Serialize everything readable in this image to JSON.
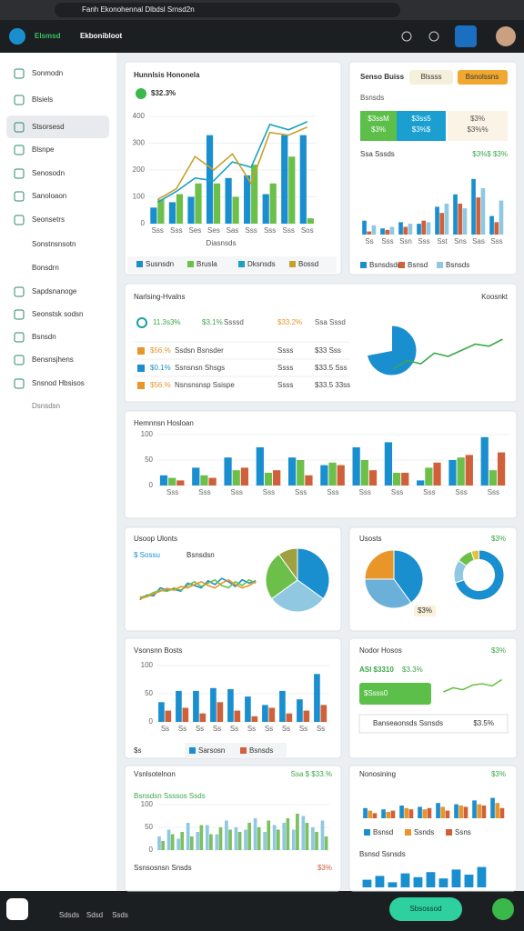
{
  "browser": {
    "tab_title": "Fanh Ekonohennal Dlbdsl Srnsd2n"
  },
  "header": {
    "brand": "Elsmsd",
    "app_name": "Ekbonibloot"
  },
  "sidebar": {
    "items": [
      "Sonmodn",
      "Blsiels",
      "Stsorsesd",
      "Blsnpe",
      "Senosodn",
      "Sanoloaon",
      "Seonsetrs",
      "Sonstnsnsotn",
      "Bonsdrn",
      "Sapdsnanoge",
      "Seonstsk sodsn",
      "Bsnsdn",
      "Bensnsjhens",
      "Snsnod Hbsisos"
    ],
    "footer": "Dsnsdsn"
  },
  "panels": [
    {
      "title": "Hunnlsis Hononela",
      "stat": "$32.3%",
      "x_label": "Diasnsds",
      "charts": [
        {
          "type": "bar-line",
          "ylim": [
            0,
            400
          ],
          "yticks": [
            0,
            100,
            200,
            300,
            400
          ],
          "categories": [
            "Sss",
            "Sss",
            "Ses",
            "Ses",
            "Sas",
            "Sss",
            "Sss",
            "Sss",
            "Sos"
          ],
          "series": [
            {
              "name": "Susnsdn",
              "color": "#1a8fd0",
              "mark": "bar",
              "values": [
                60,
                80,
                100,
                330,
                170,
                180,
                110,
                330,
                330
              ]
            },
            {
              "name": "Brusla",
              "color": "#6cc04a",
              "mark": "bar",
              "values": [
                90,
                110,
                150,
                150,
                100,
                220,
                150,
                250,
                20
              ]
            },
            {
              "name": "Dksnsds",
              "color": "#1aa0c0",
              "mark": "line",
              "values": [
                80,
                120,
                170,
                160,
                230,
                210,
                370,
                350,
                380
              ]
            },
            {
              "name": "Bossd",
              "color": "#c8a02a",
              "mark": "line",
              "values": [
                90,
                130,
                250,
                200,
                260,
                150,
                340,
                330,
                360
              ]
            }
          ]
        }
      ]
    },
    {
      "title": "Senso Buiss",
      "buttons": [
        "Blssss",
        "Bsnolssns"
      ],
      "tiles": [
        [
          "$3ssM",
          "$3%"
        ],
        [
          "$3ss5",
          "$3%$"
        ],
        [
          "$3%",
          "$3%%"
        ]
      ],
      "subtitle": "Bsnsds",
      "caption": "Ssa Sssds",
      "note": "$3%$ $3%",
      "charts": [
        {
          "type": "bar",
          "ylim": [
            0,
            200
          ],
          "categories": [
            "Ss",
            "Sss",
            "Ssn",
            "Sss",
            "Sst",
            "Sns",
            "Sas",
            "Sss"
          ],
          "series": [
            {
              "name": "Bsnsdsdn",
              "color": "#1a8fd0",
              "values": [
                45,
                20,
                40,
                35,
                90,
                130,
                180,
                60
              ]
            },
            {
              "name": "Bsnsd",
              "color": "#d0603a",
              "values": [
                10,
                15,
                25,
                45,
                70,
                100,
                120,
                40
              ]
            },
            {
              "name": "Bsnsds",
              "color": "#8fc8e0",
              "values": [
                30,
                25,
                35,
                40,
                100,
                85,
                150,
                110
              ]
            }
          ]
        }
      ]
    },
    {
      "title": "Narlsing-Hvalns",
      "badge": "Koosnkt",
      "summary": [
        "11.3s3%",
        "$3.1%",
        "Ssssd",
        "$33.2%",
        "Ssa Sssd"
      ],
      "rows": [
        [
          "$56.%",
          "Ssdsn Bsnsder",
          "Ssss",
          "$33 Sss"
        ],
        [
          "$0.1%",
          "Ssnsnsn Shsgs",
          "Ssss",
          "$33.5 Sss"
        ],
        [
          "$56.%",
          "Nsnsnsnsp Ssispe",
          "Ssss",
          "$33.5 33ss"
        ]
      ],
      "charts": [
        {
          "type": "pie",
          "values": [
            72,
            28
          ],
          "colors": [
            "#1a8fd0",
            "#ffffff"
          ]
        },
        {
          "type": "line",
          "ylim": [
            0,
            100
          ],
          "series": [
            {
              "color": "#3aa84a",
              "values": [
                10,
                30,
                22,
                48,
                40,
                55,
                70,
                65,
                82
              ]
            }
          ]
        }
      ]
    },
    {
      "title": "Hemnnsn Hosloan",
      "charts": [
        {
          "type": "bar",
          "ylim": [
            0,
            100
          ],
          "yticks": [
            0,
            50,
            100
          ],
          "categories": [
            "Sss",
            "Sss",
            "Sss",
            "Sss",
            "Sss",
            "Sss",
            "Sss",
            "Sss",
            "Sss",
            "Sss",
            "Sss"
          ],
          "series": [
            {
              "color": "#1a8fd0",
              "values": [
                20,
                35,
                55,
                75,
                55,
                40,
                75,
                85,
                10,
                50,
                95
              ]
            },
            {
              "color": "#6cc04a",
              "values": [
                15,
                20,
                30,
                25,
                50,
                45,
                50,
                25,
                35,
                55,
                30
              ]
            },
            {
              "color": "#d0603a",
              "values": [
                10,
                15,
                35,
                30,
                20,
                40,
                30,
                25,
                45,
                60,
                65
              ]
            }
          ]
        }
      ]
    },
    {
      "title": "Usoop Ulonts",
      "label": "$ Sossu",
      "subtitle": "Bsnsdsn",
      "charts": [
        {
          "type": "line",
          "ylim": [
            0,
            100
          ],
          "series": [
            {
              "color": "#1a8fd0",
              "values": [
                20,
                30,
                28,
                45,
                40,
                42,
                38,
                55,
                50,
                45,
                60,
                52,
                65,
                58,
                48,
                62,
                55,
                60
              ]
            },
            {
              "color": "#6cc04a",
              "values": [
                25,
                28,
                35,
                40,
                38,
                45,
                40,
                50,
                58,
                48,
                55,
                62,
                50,
                45,
                58,
                50,
                62,
                55
              ]
            },
            {
              "color": "#e8952a",
              "values": [
                22,
                26,
                32,
                38,
                44,
                40,
                48,
                45,
                52,
                58,
                50,
                45,
                55,
                62,
                52,
                45,
                50,
                58
              ]
            }
          ]
        },
        {
          "type": "pie",
          "values": [
            35,
            30,
            25,
            10
          ],
          "colors": [
            "#1a8fd0",
            "#8fc8e0",
            "#6cc04a",
            "#a0a040"
          ]
        }
      ]
    },
    {
      "title": "Usosts",
      "stat": "$3%",
      "pie_label": "$3%",
      "charts": [
        {
          "type": "pie",
          "values": [
            40,
            35,
            25
          ],
          "colors": [
            "#1a8fd0",
            "#6ab0d8",
            "#e8952a"
          ]
        },
        {
          "type": "donut",
          "values": [
            70,
            15,
            10,
            5
          ],
          "colors": [
            "#1a8fd0",
            "#8fc8e0",
            "#6cc04a",
            "#e8c040"
          ]
        }
      ]
    },
    {
      "title": "Vsonsnn Bosts",
      "stat": "$s",
      "charts": [
        {
          "type": "bar",
          "ylim": [
            0,
            100
          ],
          "yticks": [
            0,
            50,
            100
          ],
          "categories": [
            "Ss",
            "Ss",
            "Ss",
            "Ss",
            "Ss",
            "Ss",
            "Ss",
            "Ss",
            "Ss",
            "Ss"
          ],
          "series": [
            {
              "name": "Sarsosn",
              "color": "#1a8fd0",
              "values": [
                35,
                55,
                55,
                60,
                58,
                45,
                30,
                55,
                40,
                85
              ]
            },
            {
              "name": "Bsnsds",
              "color": "#d0603a",
              "values": [
                20,
                25,
                15,
                35,
                20,
                10,
                25,
                15,
                20,
                30
              ]
            }
          ]
        }
      ]
    },
    {
      "title": "Nodor Hosos",
      "stat": "$3%",
      "metric": "ASI $3310",
      "change": "$3.3%",
      "progress": "$Ssss0",
      "row_label": "Banseaonsds Ssnsds",
      "row_value": "$3.5%",
      "charts": [
        {
          "type": "line",
          "ylim": [
            0,
            100
          ],
          "series": [
            {
              "color": "#6cc04a",
              "values": [
                30,
                45,
                38,
                55,
                60,
                52,
                75
              ]
            }
          ]
        }
      ]
    },
    {
      "title": "Vsnlsotelnon",
      "stat": "Ssa $ $33.%",
      "subtitle": "Bsnsdsn Ssssos Ssds",
      "footer": "Ssnsosnsn Snsds",
      "footer_stat": "$3%",
      "charts": [
        {
          "type": "bar",
          "ylim": [
            0,
            100
          ],
          "yticks": [
            0,
            50,
            100
          ],
          "series": [
            {
              "color": "#8fc8e0",
              "values": [
                30,
                45,
                25,
                60,
                40,
                55,
                35,
                65,
                50,
                45,
                70,
                40,
                55,
                60,
                45,
                75,
                50,
                65
              ]
            },
            {
              "color": "#7cc060",
              "values": [
                20,
                35,
                40,
                30,
                55,
                35,
                50,
                45,
                40,
                60,
                50,
                65,
                45,
                70,
                80,
                60,
                40,
                30
              ]
            }
          ]
        }
      ]
    },
    {
      "title": "Nonosining",
      "stat": "$3%",
      "subtitle": "Bsnsd Ssnsds",
      "charts": [
        {
          "type": "bar",
          "ylim": [
            0,
            100
          ],
          "series": [
            {
              "name": "Bsnsd",
              "color": "#1a8fd0",
              "values": [
                40,
                35,
                50,
                45,
                60,
                55,
                70,
                80
              ]
            },
            {
              "name": "Ssnds",
              "color": "#e8952a",
              "values": [
                30,
                25,
                40,
                35,
                45,
                50,
                55,
                60
              ]
            },
            {
              "name": "Ssns",
              "color": "#d0603a",
              "values": [
                20,
                30,
                35,
                40,
                30,
                45,
                50,
                40
              ]
            }
          ]
        },
        {
          "type": "bar",
          "ylim": [
            0,
            100
          ],
          "series": [
            {
              "color": "#1a8fd0",
              "values": [
                30,
                45,
                20,
                55,
                40,
                60,
                35,
                70,
                50,
                80
              ]
            }
          ]
        }
      ]
    }
  ],
  "taskbar": {
    "labels": [
      "Sdsds",
      "Sdsd",
      "Ssds"
    ],
    "button": "Sbsossod"
  }
}
